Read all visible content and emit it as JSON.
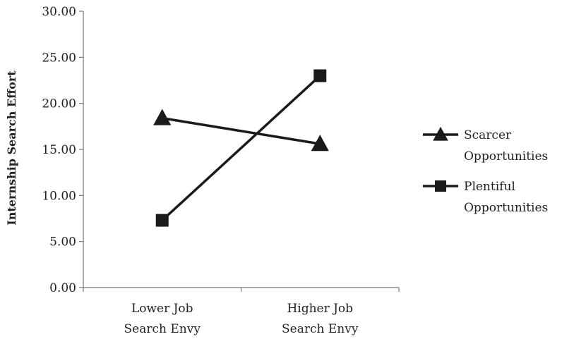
{
  "chart_data": {
    "type": "line",
    "title": "",
    "xlabel": "",
    "ylabel": "Internship Search Effort",
    "categories": [
      [
        "Lower Job",
        "Search Envy"
      ],
      [
        "Higher Job",
        "Search Envy"
      ]
    ],
    "ylim": [
      0,
      30
    ],
    "yticks": [
      "0.00",
      "5.00",
      "10.00",
      "15.00",
      "20.00",
      "25.00",
      "30.00"
    ],
    "series": [
      {
        "name": [
          "Scarcer",
          "Opportunities"
        ],
        "values": [
          18.4,
          15.6
        ],
        "marker": "triangle",
        "color": "#1a1a1a"
      },
      {
        "name": [
          "Plentiful",
          "Opportunities"
        ],
        "values": [
          7.3,
          23.0
        ],
        "marker": "square",
        "color": "#1a1a1a"
      }
    ],
    "grid": false,
    "legend_position": "right"
  }
}
